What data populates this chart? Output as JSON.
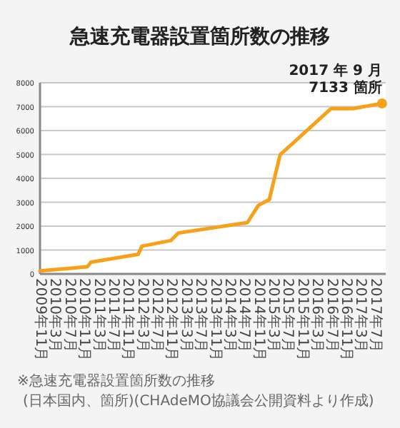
{
  "chart_data": {
    "type": "line",
    "title": "急速充電器設置箇所数の推移",
    "series": [
      {
        "color": "#f7a11a",
        "x": [
          "2009-11",
          "2010-12",
          "2011-01",
          "2012-02",
          "2012-03",
          "2012-11",
          "2013-01",
          "2014-08",
          "2014-11",
          "2015-02",
          "2015-05",
          "2016-07",
          "2017-01",
          "2017-09"
        ],
        "values": [
          130,
          300,
          490,
          820,
          1160,
          1400,
          1710,
          2150,
          2870,
          3110,
          4990,
          6920,
          6920,
          7133
        ]
      },
      {
        "type": "scatter",
        "color": "#f7a11a",
        "x": [
          "2017-09"
        ],
        "values": [
          7133
        ]
      }
    ],
    "xlim": [
      "2009-11",
      "2017-10"
    ],
    "xticks": [
      {
        "value": "2009-11",
        "label": "2009年11月"
      },
      {
        "value": "2010-03",
        "label": "2010年3月"
      },
      {
        "value": "2010-07",
        "label": "2010年7月"
      },
      {
        "value": "2010-11",
        "label": "2010年11月"
      },
      {
        "value": "2011-03",
        "label": "2011年3月"
      },
      {
        "value": "2011-07",
        "label": "2011年7月"
      },
      {
        "value": "2011-11",
        "label": "2011年11月"
      },
      {
        "value": "2012-03",
        "label": "2012年3月"
      },
      {
        "value": "2012-07",
        "label": "2012年7月"
      },
      {
        "value": "2012-11",
        "label": "2012年11月"
      },
      {
        "value": "2013-03",
        "label": "2013年3月"
      },
      {
        "value": "2013-07",
        "label": "2013年7月"
      },
      {
        "value": "2013-11",
        "label": "2013年11月"
      },
      {
        "value": "2014-03",
        "label": "2014年3月"
      },
      {
        "value": "2014-07",
        "label": "2014年7月"
      },
      {
        "value": "2014-11",
        "label": "2014年11月"
      },
      {
        "value": "2015-03",
        "label": "2015年3月"
      },
      {
        "value": "2015-07",
        "label": "2015年7月"
      },
      {
        "value": "2015-11",
        "label": "2015年11月"
      },
      {
        "value": "2016-03",
        "label": "2016年3月"
      },
      {
        "value": "2016-07",
        "label": "2016年7月"
      },
      {
        "value": "2016-11",
        "label": "2016年11月"
      },
      {
        "value": "2017-03",
        "label": "2017年3月"
      },
      {
        "value": "2017-07",
        "label": "2017年7月"
      }
    ],
    "ylim": [
      0,
      8000
    ],
    "yticks": [
      0,
      1000,
      2000,
      3000,
      4000,
      5000,
      6000,
      7000,
      8000
    ],
    "grid": "y",
    "annotations": [
      {
        "text": "2017 年 9 月\n7133 箇所",
        "x": "2017-09",
        "y": 7133
      },
      "※急速充電器設置箇所数の推移",
      "(日本国内、箇所)(CHAdeMO協議会公開資料より作成)"
    ]
  }
}
